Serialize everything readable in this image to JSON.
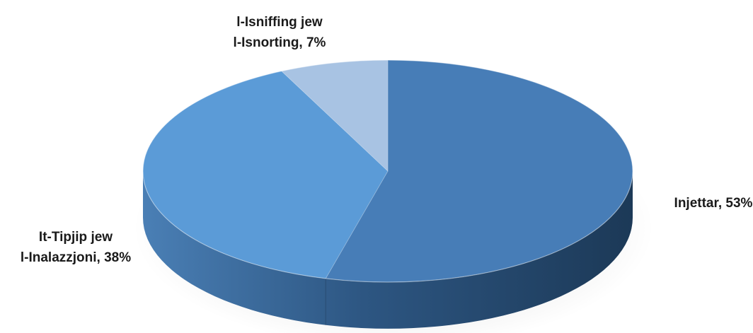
{
  "chart_data": {
    "type": "pie",
    "style": "3d",
    "title": "",
    "slices": [
      {
        "label_lines": [
          "Injettar, 53%"
        ],
        "value": 53,
        "color": "#477db7"
      },
      {
        "label_lines": [
          "It-Tipjip jew",
          "l-Inalazzjoni, 38%"
        ],
        "value": 38,
        "color": "#5b9bd7"
      },
      {
        "label_lines": [
          "l-Isniffing jew",
          "l-Isnorting, 7%"
        ],
        "value": 7,
        "color": "#a8c3e3"
      }
    ]
  }
}
